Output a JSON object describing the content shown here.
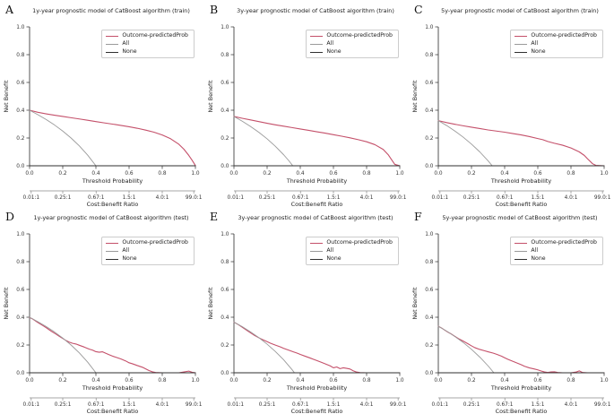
{
  "figure": {
    "background": "#ffffff",
    "colors": {
      "model": "#c4506a",
      "all": "#9a9a9a",
      "none": "#2f2f2f",
      "axis": "#2b2b2b",
      "axis2": "#8a8a8a",
      "tick_text": "#333333"
    },
    "legend": [
      {
        "label": "Outcome-predictedProb",
        "color_key": "model"
      },
      {
        "label": "All",
        "color_key": "all"
      },
      {
        "label": "None",
        "color_key": "none"
      }
    ],
    "legend_position": "upper right",
    "ylabel": "Net Benefit",
    "xlabel": "Threshold Probability",
    "xlabel2": "Cost:Benefit Ratio",
    "ytick_labels": [
      "0.0",
      "0.2",
      "0.4",
      "0.6",
      "0.8",
      "1.0"
    ],
    "xtick_labels": [
      "0.0",
      "0.2",
      "0.4",
      "0.6",
      "0.8",
      "1.0"
    ],
    "cost_tick_labels": [
      "0.01:1",
      "0.25:1",
      "0.67:1",
      "1.5:1",
      "4.0:1",
      "99.0:1"
    ],
    "grid": false
  },
  "chart_data": [
    {
      "letter": "A",
      "title": "1y-year prognostic model of CatBoost algorithm (train)",
      "type": "line",
      "xlabel": "Threshold Probability",
      "ylabel": "Net Benefit",
      "xlim": [
        0,
        1
      ],
      "ylim": [
        0,
        1
      ],
      "series": [
        {
          "name": "Outcome-predictedProb",
          "color_key": "model",
          "x": [
            0,
            0.05,
            0.1,
            0.15,
            0.2,
            0.25,
            0.3,
            0.35,
            0.4,
            0.45,
            0.5,
            0.55,
            0.6,
            0.65,
            0.7,
            0.75,
            0.8,
            0.85,
            0.9,
            0.93,
            0.96,
            0.98,
            1.0
          ],
          "y": [
            0.4,
            0.385,
            0.374,
            0.364,
            0.355,
            0.346,
            0.337,
            0.328,
            0.318,
            0.309,
            0.3,
            0.291,
            0.281,
            0.27,
            0.257,
            0.242,
            0.222,
            0.195,
            0.155,
            0.12,
            0.075,
            0.04,
            0.002
          ]
        },
        {
          "name": "All",
          "color_key": "all",
          "x": [
            0,
            0.05,
            0.1,
            0.15,
            0.2,
            0.25,
            0.3,
            0.35,
            0.4
          ],
          "y": [
            0.4,
            0.368,
            0.333,
            0.294,
            0.25,
            0.2,
            0.143,
            0.077,
            0.0
          ]
        },
        {
          "name": "None",
          "color_key": "none",
          "x": [
            0,
            1
          ],
          "y": [
            0,
            0
          ]
        }
      ]
    },
    {
      "letter": "B",
      "title": "3y-year prognostic model of CatBoost algorithm (train)",
      "type": "line",
      "xlabel": "Threshold Probability",
      "ylabel": "Net Benefit",
      "xlim": [
        0,
        1
      ],
      "ylim": [
        0,
        1
      ],
      "series": [
        {
          "name": "Outcome-predictedProb",
          "color_key": "model",
          "x": [
            0,
            0.05,
            0.1,
            0.15,
            0.2,
            0.25,
            0.3,
            0.35,
            0.4,
            0.45,
            0.5,
            0.55,
            0.6,
            0.65,
            0.7,
            0.75,
            0.8,
            0.85,
            0.9,
            0.93,
            0.95,
            0.97,
            1.0
          ],
          "y": [
            0.355,
            0.342,
            0.33,
            0.318,
            0.306,
            0.295,
            0.285,
            0.275,
            0.265,
            0.255,
            0.245,
            0.235,
            0.224,
            0.213,
            0.201,
            0.188,
            0.173,
            0.152,
            0.118,
            0.08,
            0.045,
            0.01,
            0.0
          ]
        },
        {
          "name": "All",
          "color_key": "all",
          "x": [
            0,
            0.05,
            0.1,
            0.15,
            0.2,
            0.25,
            0.3,
            0.33,
            0.355
          ],
          "y": [
            0.355,
            0.321,
            0.283,
            0.241,
            0.194,
            0.14,
            0.079,
            0.038,
            0.0
          ]
        },
        {
          "name": "None",
          "color_key": "none",
          "x": [
            0,
            1
          ],
          "y": [
            0,
            0
          ]
        }
      ]
    },
    {
      "letter": "C",
      "title": "5y-year prognostic model of CatBoost algorithm (train)",
      "type": "line",
      "xlabel": "Threshold Probability",
      "ylabel": "Net Benefit",
      "xlim": [
        0,
        1
      ],
      "ylim": [
        0,
        1
      ],
      "series": [
        {
          "name": "Outcome-predictedProb",
          "color_key": "model",
          "x": [
            0,
            0.05,
            0.1,
            0.15,
            0.2,
            0.25,
            0.3,
            0.35,
            0.4,
            0.45,
            0.5,
            0.55,
            0.6,
            0.63,
            0.66,
            0.7,
            0.75,
            0.8,
            0.85,
            0.88,
            0.9,
            0.93,
            0.95,
            1.0
          ],
          "y": [
            0.325,
            0.311,
            0.299,
            0.288,
            0.278,
            0.268,
            0.258,
            0.25,
            0.242,
            0.232,
            0.222,
            0.21,
            0.196,
            0.188,
            0.175,
            0.162,
            0.148,
            0.128,
            0.1,
            0.075,
            0.05,
            0.015,
            0.003,
            0.0
          ]
        },
        {
          "name": "All",
          "color_key": "all",
          "x": [
            0,
            0.05,
            0.1,
            0.15,
            0.2,
            0.25,
            0.3,
            0.325
          ],
          "y": [
            0.325,
            0.29,
            0.25,
            0.206,
            0.156,
            0.1,
            0.036,
            0.0
          ]
        },
        {
          "name": "None",
          "color_key": "none",
          "x": [
            0,
            1
          ],
          "y": [
            0,
            0
          ]
        }
      ]
    },
    {
      "letter": "D",
      "title": "1y-year prognostic model of CatBoost algorithm (test)",
      "type": "line",
      "xlabel": "Threshold Probability",
      "ylabel": "Net Benefit",
      "xlim": [
        0,
        1
      ],
      "ylim": [
        0,
        1
      ],
      "series": [
        {
          "name": "Outcome-predictedProb",
          "color_key": "model",
          "x": [
            0,
            0.02,
            0.05,
            0.08,
            0.1,
            0.13,
            0.16,
            0.18,
            0.2,
            0.22,
            0.24,
            0.26,
            0.28,
            0.3,
            0.33,
            0.36,
            0.38,
            0.4,
            0.42,
            0.44,
            0.46,
            0.48,
            0.5,
            0.52,
            0.55,
            0.58,
            0.6,
            0.62,
            0.65,
            0.68,
            0.7,
            0.72,
            0.74,
            0.76,
            0.8,
            0.9,
            0.96,
            0.98,
            1.0
          ],
          "y": [
            0.398,
            0.386,
            0.362,
            0.34,
            0.325,
            0.3,
            0.278,
            0.262,
            0.247,
            0.232,
            0.22,
            0.212,
            0.207,
            0.198,
            0.185,
            0.17,
            0.163,
            0.152,
            0.148,
            0.151,
            0.14,
            0.13,
            0.12,
            0.112,
            0.1,
            0.085,
            0.072,
            0.065,
            0.052,
            0.04,
            0.028,
            0.016,
            0.007,
            0.002,
            0.0,
            0.0,
            0.012,
            0.004,
            0.0
          ]
        },
        {
          "name": "All",
          "color_key": "all",
          "x": [
            0,
            0.05,
            0.1,
            0.15,
            0.2,
            0.25,
            0.3,
            0.35,
            0.4
          ],
          "y": [
            0.4,
            0.368,
            0.333,
            0.294,
            0.25,
            0.2,
            0.143,
            0.077,
            0.0
          ]
        },
        {
          "name": "None",
          "color_key": "none",
          "x": [
            0,
            1
          ],
          "y": [
            0,
            0
          ]
        }
      ]
    },
    {
      "letter": "E",
      "title": "3y-year prognostic model of CatBoost algorithm (test)",
      "type": "line",
      "xlabel": "Threshold Probability",
      "ylabel": "Net Benefit",
      "xlim": [
        0,
        1
      ],
      "ylim": [
        0,
        1
      ],
      "series": [
        {
          "name": "Outcome-predictedProb",
          "color_key": "model",
          "x": [
            0,
            0.03,
            0.06,
            0.09,
            0.12,
            0.15,
            0.17,
            0.2,
            0.22,
            0.25,
            0.28,
            0.3,
            0.33,
            0.36,
            0.38,
            0.4,
            0.43,
            0.46,
            0.48,
            0.5,
            0.53,
            0.56,
            0.58,
            0.6,
            0.62,
            0.64,
            0.66,
            0.68,
            0.7,
            0.72,
            0.74,
            0.76,
            0.8,
            1.0
          ],
          "y": [
            0.365,
            0.344,
            0.32,
            0.296,
            0.272,
            0.252,
            0.24,
            0.224,
            0.213,
            0.199,
            0.186,
            0.176,
            0.163,
            0.15,
            0.142,
            0.132,
            0.119,
            0.106,
            0.097,
            0.088,
            0.074,
            0.06,
            0.05,
            0.036,
            0.042,
            0.03,
            0.036,
            0.032,
            0.027,
            0.014,
            0.005,
            0.001,
            0.0,
            0.0
          ]
        },
        {
          "name": "All",
          "color_key": "all",
          "x": [
            0,
            0.05,
            0.1,
            0.15,
            0.2,
            0.25,
            0.3,
            0.35,
            0.365
          ],
          "y": [
            0.365,
            0.332,
            0.294,
            0.253,
            0.206,
            0.153,
            0.093,
            0.023,
            0.0
          ]
        },
        {
          "name": "None",
          "color_key": "none",
          "x": [
            0,
            1
          ],
          "y": [
            0,
            0
          ]
        }
      ]
    },
    {
      "letter": "F",
      "title": "5y-year prognostic model of CatBoost algorithm (test)",
      "type": "line",
      "xlabel": "Threshold Probability",
      "ylabel": "Net Benefit",
      "xlim": [
        0,
        1
      ],
      "ylim": [
        0,
        1
      ],
      "series": [
        {
          "name": "Outcome-predictedProb",
          "color_key": "model",
          "x": [
            0,
            0.02,
            0.04,
            0.06,
            0.08,
            0.1,
            0.12,
            0.15,
            0.18,
            0.2,
            0.22,
            0.25,
            0.28,
            0.3,
            0.33,
            0.35,
            0.38,
            0.4,
            0.42,
            0.45,
            0.48,
            0.5,
            0.52,
            0.55,
            0.58,
            0.6,
            0.62,
            0.64,
            0.66,
            0.68,
            0.7,
            0.72,
            0.75,
            0.8,
            0.83,
            0.85,
            0.87,
            0.9,
            1.0
          ],
          "y": [
            0.335,
            0.322,
            0.306,
            0.291,
            0.278,
            0.262,
            0.247,
            0.228,
            0.208,
            0.194,
            0.181,
            0.168,
            0.158,
            0.151,
            0.142,
            0.134,
            0.12,
            0.108,
            0.097,
            0.082,
            0.068,
            0.058,
            0.047,
            0.035,
            0.027,
            0.021,
            0.013,
            0.006,
            0.002,
            0.006,
            0.007,
            0.002,
            0.0,
            0.0,
            0.005,
            0.014,
            0.002,
            0.0,
            0.0
          ]
        },
        {
          "name": "All",
          "color_key": "all",
          "x": [
            0,
            0.05,
            0.1,
            0.15,
            0.2,
            0.25,
            0.3,
            0.335
          ],
          "y": [
            0.335,
            0.3,
            0.261,
            0.218,
            0.169,
            0.113,
            0.05,
            0.0
          ]
        },
        {
          "name": "None",
          "color_key": "none",
          "x": [
            0,
            1
          ],
          "y": [
            0,
            0
          ]
        }
      ]
    }
  ]
}
